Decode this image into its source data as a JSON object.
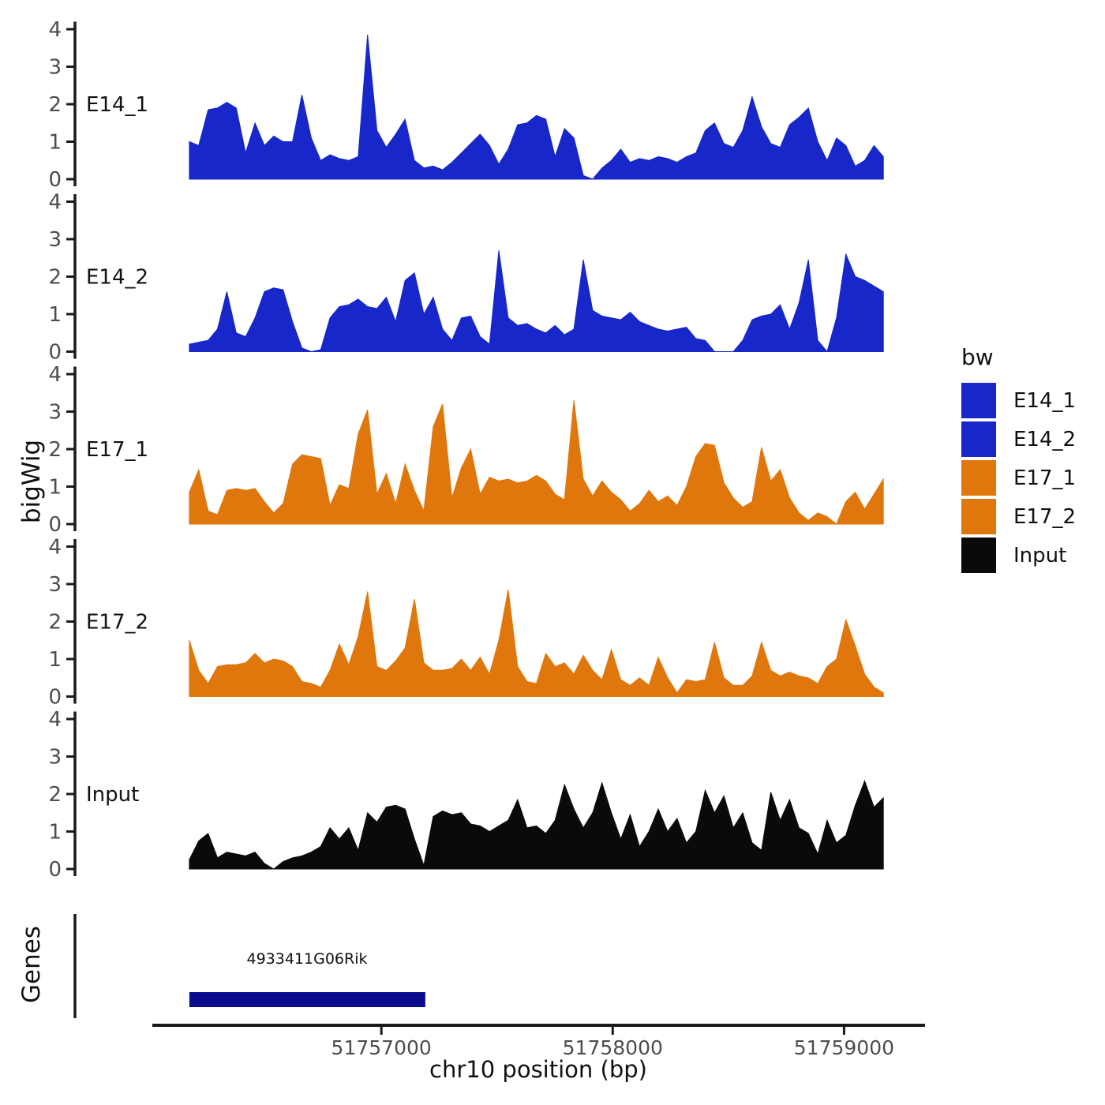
{
  "chart_data": {
    "type": "area",
    "description": "Genome browser style bigWig coverage tracks",
    "x_axis": {
      "label": "chr10 position (bp)",
      "ticks": [
        51757000,
        51758000,
        51759000
      ],
      "range": [
        51756010,
        51759350
      ]
    },
    "y_axis": {
      "label": "bigWig",
      "ticks": [
        0,
        1,
        2,
        3,
        4
      ],
      "range": [
        0,
        4
      ]
    },
    "sample_start_bp": 51756170,
    "sample_end_bp": 51759170,
    "tracks": [
      {
        "name": "E14_1",
        "color": "#1727C9",
        "values": [
          1.0,
          0.9,
          1.85,
          1.9,
          2.05,
          1.9,
          0.7,
          1.5,
          0.9,
          1.15,
          1.0,
          1.0,
          2.25,
          1.1,
          0.5,
          0.65,
          0.55,
          0.5,
          0.6,
          3.85,
          1.3,
          0.85,
          1.2,
          1.6,
          0.5,
          0.3,
          0.35,
          0.25,
          0.45,
          0.7,
          0.95,
          1.2,
          0.9,
          0.4,
          0.8,
          1.45,
          1.5,
          1.7,
          1.6,
          0.6,
          1.35,
          1.1,
          0.1,
          0.0,
          0.3,
          0.5,
          0.8,
          0.45,
          0.55,
          0.5,
          0.6,
          0.55,
          0.45,
          0.6,
          0.7,
          1.3,
          1.5,
          0.95,
          0.85,
          1.3,
          2.2,
          1.4,
          0.95,
          0.85,
          1.45,
          1.65,
          1.9,
          1.0,
          0.5,
          1.1,
          0.9,
          0.35,
          0.5,
          0.9,
          0.6
        ]
      },
      {
        "name": "E14_2",
        "color": "#1727C9",
        "values": [
          0.2,
          0.25,
          0.3,
          0.6,
          1.6,
          0.5,
          0.4,
          0.9,
          1.6,
          1.7,
          1.65,
          0.8,
          0.1,
          0.0,
          0.05,
          0.9,
          1.2,
          1.25,
          1.4,
          1.2,
          1.15,
          1.45,
          0.8,
          1.9,
          2.1,
          1.0,
          1.45,
          0.6,
          0.3,
          0.9,
          0.95,
          0.4,
          0.2,
          2.7,
          0.9,
          0.7,
          0.75,
          0.6,
          0.5,
          0.7,
          0.45,
          0.6,
          2.45,
          1.1,
          0.95,
          0.9,
          0.85,
          1.05,
          0.8,
          0.7,
          0.6,
          0.55,
          0.6,
          0.65,
          0.35,
          0.3,
          0.0,
          0.0,
          0.0,
          0.3,
          0.85,
          0.95,
          1.0,
          1.25,
          0.6,
          1.3,
          2.45,
          0.3,
          0.0,
          0.9,
          2.6,
          2.0,
          1.9,
          1.75,
          1.6
        ]
      },
      {
        "name": "E17_1",
        "color": "#E0770D",
        "values": [
          0.85,
          1.45,
          0.35,
          0.25,
          0.9,
          0.95,
          0.9,
          0.95,
          0.6,
          0.3,
          0.55,
          1.6,
          1.85,
          1.8,
          1.75,
          0.5,
          1.05,
          0.95,
          2.4,
          3.05,
          0.8,
          1.35,
          0.55,
          1.6,
          0.9,
          0.35,
          2.6,
          3.2,
          0.7,
          1.5,
          2.0,
          0.8,
          1.25,
          1.15,
          1.2,
          1.1,
          1.15,
          1.3,
          1.15,
          0.8,
          0.65,
          3.3,
          1.2,
          0.75,
          1.15,
          0.85,
          0.65,
          0.35,
          0.55,
          0.9,
          0.6,
          0.75,
          0.5,
          1.0,
          1.8,
          2.15,
          2.1,
          1.1,
          0.7,
          0.45,
          0.6,
          2.05,
          1.15,
          1.45,
          0.7,
          0.3,
          0.1,
          0.3,
          0.2,
          0.0,
          0.6,
          0.85,
          0.4,
          0.8,
          1.2
        ]
      },
      {
        "name": "E17_2",
        "color": "#E0770D",
        "values": [
          1.5,
          0.7,
          0.35,
          0.8,
          0.85,
          0.85,
          0.9,
          1.15,
          0.9,
          1.0,
          0.95,
          0.8,
          0.4,
          0.35,
          0.25,
          0.7,
          1.4,
          0.85,
          1.6,
          2.8,
          0.8,
          0.7,
          0.95,
          1.3,
          2.6,
          0.9,
          0.7,
          0.7,
          0.75,
          1.0,
          0.7,
          1.05,
          0.6,
          1.5,
          2.85,
          0.8,
          0.4,
          0.35,
          1.15,
          0.8,
          0.9,
          0.6,
          1.1,
          0.7,
          0.45,
          1.25,
          0.45,
          0.3,
          0.5,
          0.3,
          1.05,
          0.5,
          0.1,
          0.45,
          0.4,
          0.45,
          1.45,
          0.5,
          0.3,
          0.3,
          0.55,
          1.45,
          0.7,
          0.55,
          0.65,
          0.55,
          0.5,
          0.35,
          0.8,
          1.0,
          2.05,
          1.35,
          0.6,
          0.25,
          0.1
        ]
      },
      {
        "name": "Input",
        "color": "#0A0A0A",
        "values": [
          0.25,
          0.75,
          0.95,
          0.3,
          0.45,
          0.4,
          0.35,
          0.45,
          0.15,
          0.0,
          0.2,
          0.3,
          0.35,
          0.45,
          0.6,
          1.1,
          0.8,
          1.1,
          0.5,
          1.5,
          1.25,
          1.65,
          1.7,
          1.6,
          0.8,
          0.1,
          1.4,
          1.55,
          1.45,
          1.5,
          1.2,
          1.15,
          1.0,
          1.15,
          1.3,
          1.85,
          1.1,
          1.15,
          0.95,
          1.3,
          2.25,
          1.6,
          1.1,
          1.5,
          2.3,
          1.5,
          0.8,
          1.45,
          0.6,
          1.0,
          1.6,
          1.0,
          1.35,
          0.7,
          1.0,
          2.1,
          1.5,
          1.95,
          1.1,
          1.5,
          0.7,
          0.5,
          2.05,
          1.3,
          1.85,
          1.1,
          0.95,
          0.4,
          1.3,
          0.7,
          0.9,
          1.7,
          2.35,
          1.65,
          1.9
        ]
      }
    ],
    "genes_track": {
      "label": "Genes",
      "genes": [
        {
          "name": "4933411G06Rik",
          "start": 51756170,
          "end": 51757190,
          "color": "#0B0B8E"
        }
      ]
    },
    "legend": {
      "title": "bw",
      "items": [
        {
          "label": "E14_1",
          "color": "#1727C9"
        },
        {
          "label": "E14_2",
          "color": "#1727C9"
        },
        {
          "label": "E17_1",
          "color": "#E0770D"
        },
        {
          "label": "E17_2",
          "color": "#E0770D"
        },
        {
          "label": "Input",
          "color": "#0A0A0A"
        }
      ]
    }
  },
  "labels": {
    "y_axis_title": "bigWig",
    "genes_axis_title": "Genes",
    "x_axis_title": "chr10 position (bp)",
    "gene_name": "4933411G06Rik",
    "legend_title": "bw"
  }
}
